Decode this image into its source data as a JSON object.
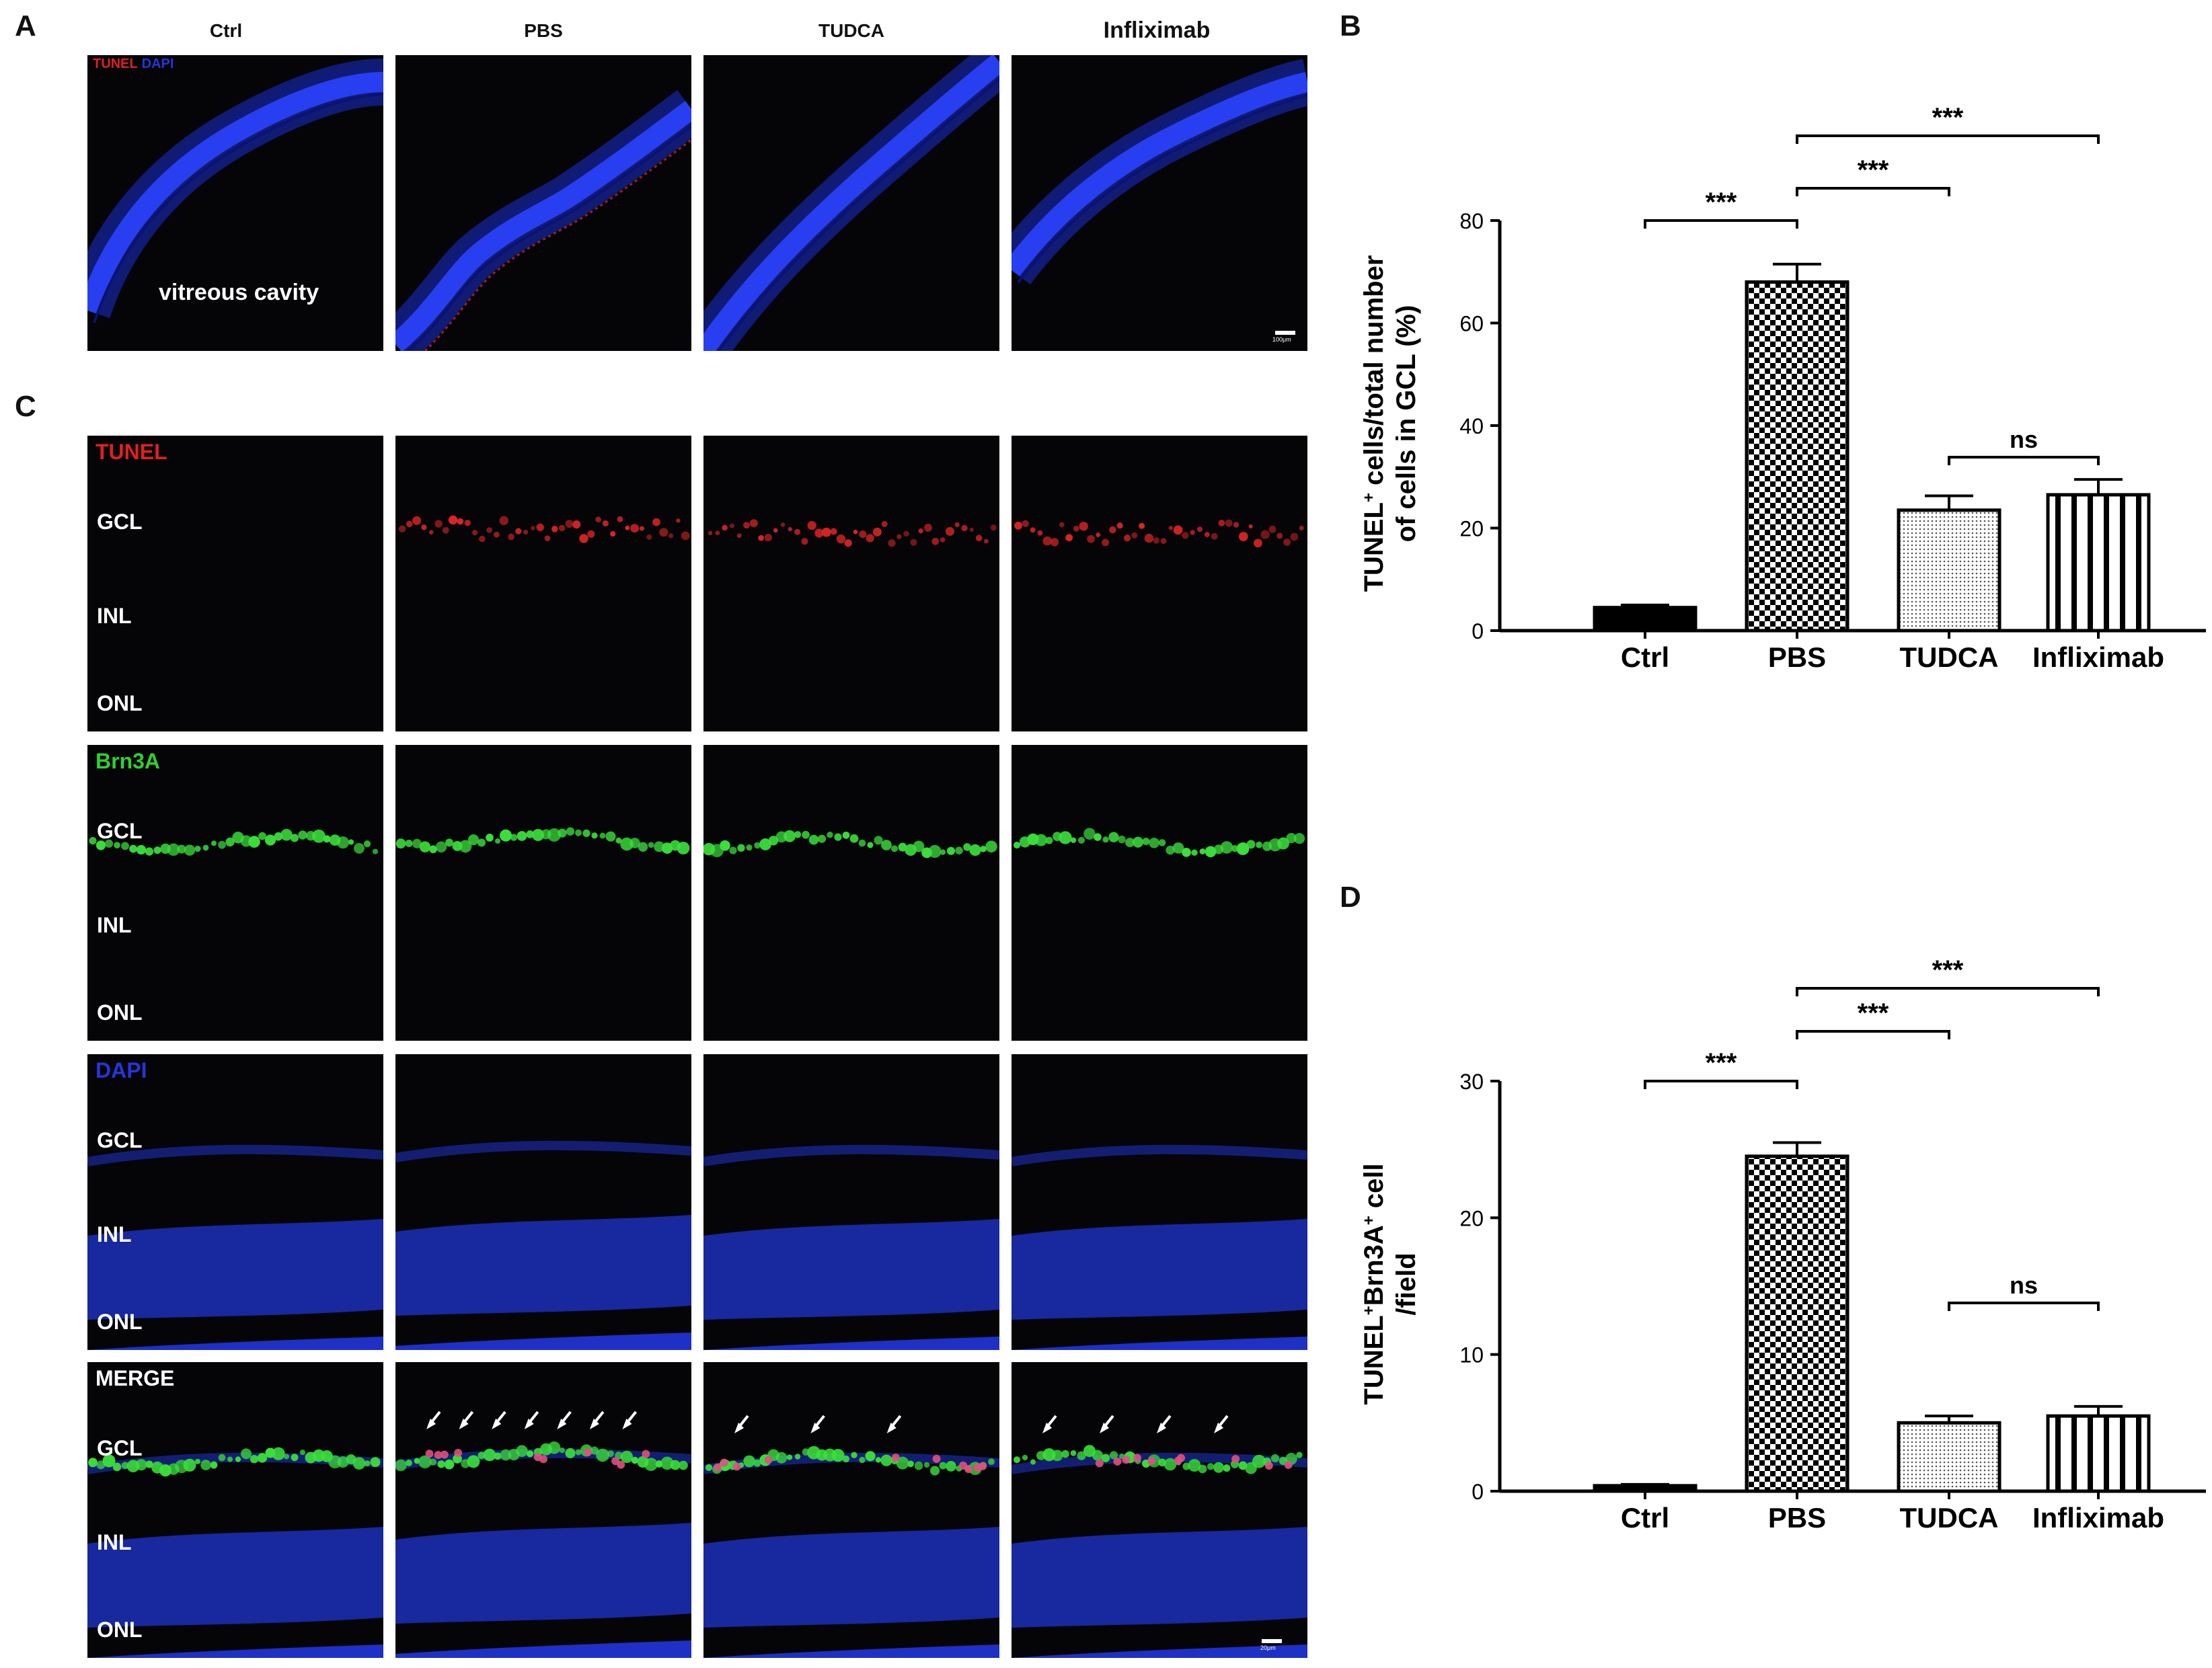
{
  "panels": {
    "a": "A",
    "b": "B",
    "c": "C",
    "d": "D"
  },
  "groups": [
    "Ctrl",
    "PBS",
    "TUDCA",
    "Infliximab"
  ],
  "panel_a": {
    "legend_tunel": "TUNEL",
    "legend_dapi": "DAPI",
    "cavity_label": "vitreous cavity",
    "scale_label": "100μm"
  },
  "panel_c": {
    "rows": [
      {
        "stain": "TUNEL",
        "color": "#e02020"
      },
      {
        "stain": "Brn3A",
        "color": "#2fd02f"
      },
      {
        "stain": "DAPI",
        "color": "#2436d8"
      },
      {
        "stain": "MERGE",
        "color": "#ffffff"
      }
    ],
    "layers": [
      "GCL",
      "INL",
      "ONL"
    ],
    "scale_label": "20μm",
    "arrow_counts": [
      0,
      7,
      3,
      4
    ]
  },
  "chart_data": [
    {
      "type": "bar",
      "panel": "B",
      "categories": [
        "Ctrl",
        "PBS",
        "TUDCA",
        "Infliximab"
      ],
      "values": [
        4.5,
        68,
        23.5,
        26.5
      ],
      "errors": [
        0.5,
        3.5,
        2.8,
        3.0
      ],
      "patterns": [
        "solid",
        "checker",
        "dots",
        "vstripes"
      ],
      "ylabel_line1": "TUNEL",
      "ylabel_sup": "+",
      "ylabel_line1_rest": " cells/total number",
      "ylabel_line2": "of cells in GCL (%)",
      "ylim": [
        0,
        80
      ],
      "yticks": [
        0,
        20,
        40,
        60,
        80
      ],
      "brackets": [
        {
          "from": 0,
          "to": 1,
          "label": "***"
        },
        {
          "from": 1,
          "to": 2,
          "label": "***"
        },
        {
          "from": 1,
          "to": 3,
          "label": "***"
        },
        {
          "from": 2,
          "to": 3,
          "label": "ns"
        }
      ]
    },
    {
      "type": "bar",
      "panel": "D",
      "categories": [
        "Ctrl",
        "PBS",
        "TUDCA",
        "Infliximab"
      ],
      "values": [
        0.4,
        24.5,
        5.0,
        5.5
      ],
      "errors": [
        0.1,
        1.0,
        0.5,
        0.7
      ],
      "patterns": [
        "solid",
        "checker",
        "dots",
        "vstripes"
      ],
      "ylabel_line1": "TUNEL",
      "ylabel_sup": "+",
      "ylabel_line1_mid": "Brn3A",
      "ylabel_sup2": "+",
      "ylabel_line1_rest": " cell",
      "ylabel_line2": "/field",
      "ylim": [
        0,
        30
      ],
      "yticks": [
        0,
        10,
        20,
        30
      ],
      "brackets": [
        {
          "from": 0,
          "to": 1,
          "label": "***"
        },
        {
          "from": 1,
          "to": 2,
          "label": "***"
        },
        {
          "from": 1,
          "to": 3,
          "label": "***"
        },
        {
          "from": 2,
          "to": 3,
          "label": "ns"
        }
      ]
    }
  ]
}
